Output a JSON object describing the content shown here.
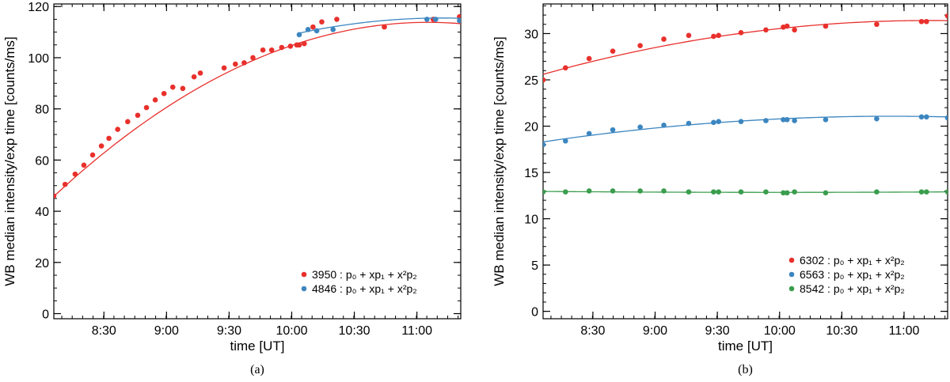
{
  "chart_data": [
    {
      "type": "scatter",
      "panel_label": "(a)",
      "xlabel": "time [UT]",
      "ylabel": "WB median intensity/exp time [counts/ms]",
      "xlim": [
        8.1,
        11.35
      ],
      "ylim": [
        -2,
        121
      ],
      "x_ticks": [
        8.5,
        9.0,
        9.5,
        10.0,
        10.5,
        11.0
      ],
      "x_tick_labels": [
        "8:30",
        "9:00",
        "9:30",
        "10:00",
        "10:30",
        "11:00"
      ],
      "x_minor_step": 0.0833,
      "y_ticks": [
        0,
        20,
        40,
        60,
        80,
        100,
        120
      ],
      "y_tick_labels": [
        "0",
        "20",
        "40",
        "60",
        "80",
        "100",
        "120"
      ],
      "y_minor_step": 5,
      "legend_position": "bottom-right",
      "series": [
        {
          "name": "3950",
          "fit_label": " : p₀ + xp₁ + x²p₂",
          "color": "#e8302c",
          "x": [
            8.1,
            8.19,
            8.27,
            8.34,
            8.41,
            8.48,
            8.54,
            8.61,
            8.69,
            8.77,
            8.84,
            8.91,
            8.98,
            9.05,
            9.13,
            9.22,
            9.27,
            9.46,
            9.55,
            9.62,
            9.69,
            9.77,
            9.84,
            9.92,
            9.99,
            10.04,
            10.06,
            10.1,
            10.17,
            10.24,
            10.36,
            10.74,
            11.13,
            11.34
          ],
          "y": [
            46,
            50.5,
            54.5,
            58,
            62,
            65.5,
            68.5,
            72,
            75,
            77.5,
            80.5,
            83.5,
            86,
            88.5,
            88,
            92.5,
            94,
            96,
            97.5,
            98,
            100,
            103,
            103,
            104,
            104.5,
            105,
            105,
            105.5,
            112,
            114,
            115,
            112,
            115,
            116
          ],
          "fit": [
            8.1,
            11.35,
            45.8,
            113.3,
            11.09
          ]
        },
        {
          "name": "4846",
          "fit_label": " : p₀ + xp₁ + x²p₂",
          "color": "#3c86c0",
          "x": [
            10.06,
            10.13,
            10.2,
            10.33,
            11.08,
            11.15,
            11.34
          ],
          "y": [
            109,
            111,
            110.5,
            111,
            115,
            115,
            114.5
          ],
          "fit": [
            10.06,
            11.35,
            109.6,
            115.4,
            11.2
          ]
        }
      ]
    },
    {
      "type": "scatter",
      "panel_label": "(b)",
      "xlabel": "time [UT]",
      "ylabel": "WB median intensity/exp time [counts/ms]",
      "xlim": [
        8.1,
        11.35
      ],
      "ylim": [
        -0.8,
        33.2
      ],
      "x_ticks": [
        8.5,
        9.0,
        9.5,
        10.0,
        10.5,
        11.0
      ],
      "x_tick_labels": [
        "8:30",
        "9:00",
        "9:30",
        "10:00",
        "10:30",
        "11:00"
      ],
      "x_minor_step": 0.0833,
      "y_ticks": [
        0,
        5,
        10,
        15,
        20,
        25,
        30
      ],
      "y_tick_labels": [
        "0",
        "5",
        "10",
        "15",
        "20",
        "25",
        "30"
      ],
      "y_minor_step": 1,
      "legend_position": "bottom-right",
      "series": [
        {
          "name": "6302",
          "fit_label": " : p₀ + xp₁ + x²p₂",
          "color": "#e8302c",
          "x": [
            8.1,
            8.28,
            8.47,
            8.66,
            8.88,
            9.07,
            9.27,
            9.47,
            9.51,
            9.69,
            9.89,
            10.03,
            10.06,
            10.12,
            10.37,
            10.78,
            11.14,
            11.18,
            11.35
          ],
          "y": [
            25,
            26.3,
            27.3,
            28.1,
            28.7,
            29.4,
            29.8,
            29.7,
            29.8,
            30.1,
            30.4,
            30.7,
            30.8,
            30.4,
            30.8,
            31.0,
            31.3,
            31.3,
            31.9
          ],
          "fit": [
            8.1,
            11.35,
            25.6,
            31.4,
            11.2
          ]
        },
        {
          "name": "6563",
          "fit_label": " : p₀ + xp₁ + x²p₂",
          "color": "#3c86c0",
          "x": [
            8.1,
            8.28,
            8.47,
            8.66,
            8.88,
            9.07,
            9.27,
            9.47,
            9.51,
            9.69,
            9.89,
            10.03,
            10.06,
            10.12,
            10.37,
            10.78,
            11.14,
            11.18,
            11.35
          ],
          "y": [
            18,
            18.4,
            19.2,
            19.6,
            19.9,
            20.1,
            20.3,
            20.4,
            20.5,
            20.5,
            20.6,
            20.7,
            20.7,
            20.6,
            20.7,
            20.8,
            21.0,
            21.0,
            20.9
          ],
          "fit": [
            8.1,
            11.35,
            18.3,
            21.0,
            10.9
          ]
        },
        {
          "name": "8542",
          "fit_label": " : p₀ + xp₁ + x²p₂",
          "color": "#3a9d4d",
          "x": [
            8.1,
            8.28,
            8.47,
            8.66,
            8.88,
            9.07,
            9.27,
            9.47,
            9.51,
            9.69,
            9.89,
            10.03,
            10.06,
            10.12,
            10.37,
            10.78,
            11.14,
            11.18,
            11.35
          ],
          "y": [
            12.9,
            12.9,
            13.0,
            13.0,
            13.0,
            13.0,
            12.9,
            12.9,
            12.9,
            12.9,
            12.9,
            12.8,
            12.8,
            12.9,
            12.8,
            12.9,
            12.9,
            12.9,
            12.9
          ],
          "fit": [
            8.1,
            11.35,
            12.95,
            12.9,
            10.0
          ]
        }
      ]
    }
  ]
}
